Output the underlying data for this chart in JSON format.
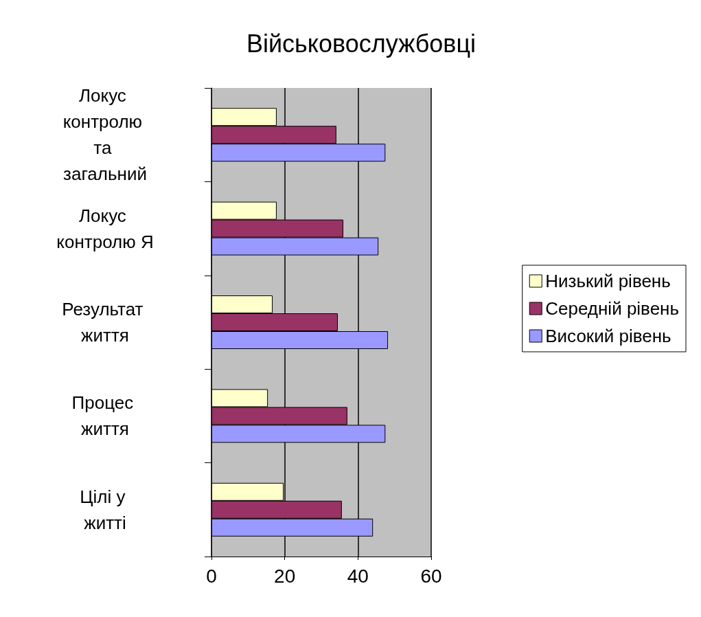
{
  "chart_data": {
    "type": "bar",
    "orientation": "horizontal",
    "title": "Військовослужбовці",
    "categories": [
      "Локус контролю та загальний",
      "Локус контролю Я",
      "Результат життя",
      "Процес життя",
      "Цілі у житті"
    ],
    "series": [
      {
        "name": "Низький рівень",
        "color": "#ffffcc",
        "values": [
          17.8,
          17.8,
          16.7,
          15.4,
          19.7
        ]
      },
      {
        "name": "Середній рівень",
        "color": "#993366",
        "values": [
          34.1,
          36,
          34.5,
          37.1,
          35.6
        ]
      },
      {
        "name": "Високий рівень",
        "color": "#9999ff",
        "values": [
          47.5,
          45.6,
          48.2,
          47.5,
          44.1
        ]
      }
    ],
    "xlim": [
      0,
      60
    ],
    "xticks": [
      0,
      20,
      40,
      60
    ],
    "grid": "x",
    "legend": "right"
  }
}
